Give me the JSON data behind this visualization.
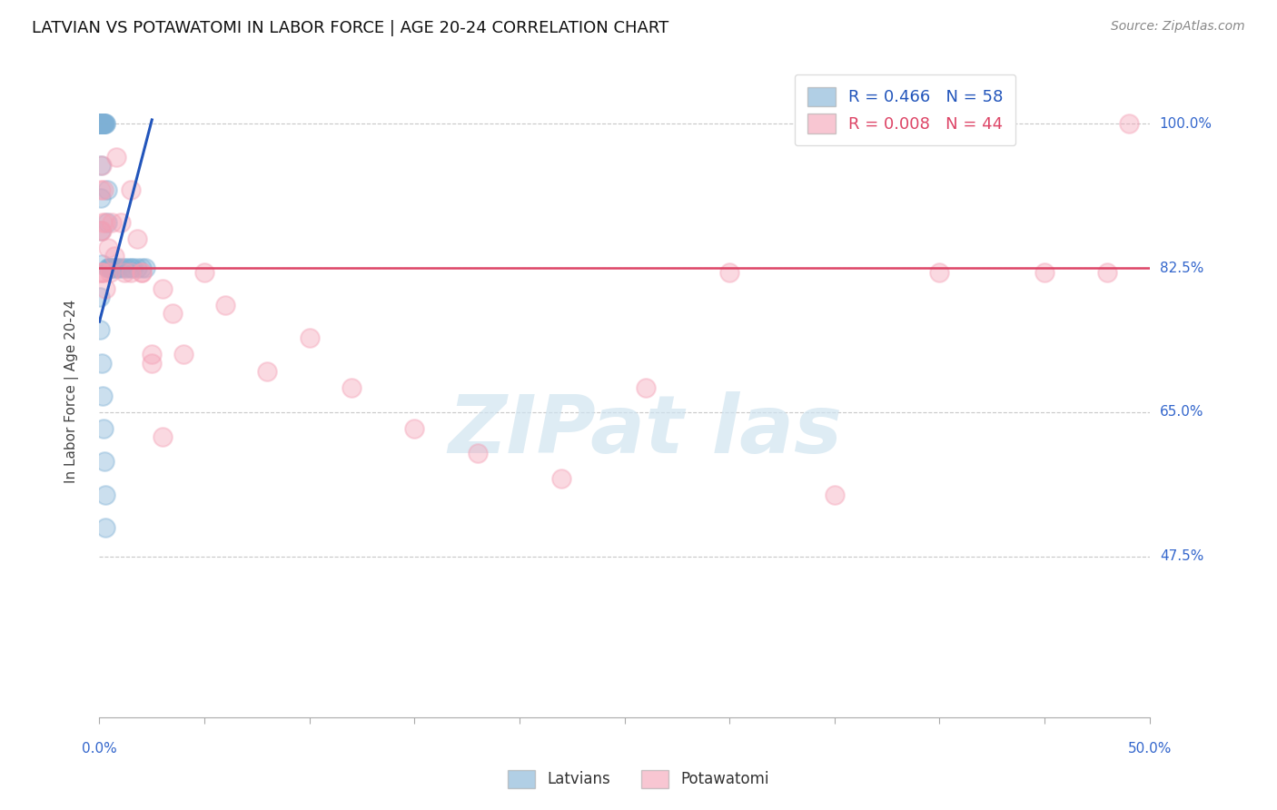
{
  "title": "LATVIAN VS POTAWATOMI IN LABOR FORCE | AGE 20-24 CORRELATION CHART",
  "source": "Source: ZipAtlas.com",
  "ylabel": "In Labor Force | Age 20-24",
  "ytick_labels": [
    "47.5%",
    "65.0%",
    "82.5%",
    "100.0%"
  ],
  "ytick_values": [
    0.475,
    0.65,
    0.825,
    1.0
  ],
  "xlim": [
    0.0,
    0.5
  ],
  "ylim": [
    0.28,
    1.07
  ],
  "legend_latvian": "R = 0.466   N = 58",
  "legend_potawatomi": "R = 0.008   N = 44",
  "legend_label_latvian": "Latvians",
  "legend_label_potawatomi": "Potawatomi",
  "blue_color": "#7EB0D5",
  "pink_color": "#F4A0B5",
  "blue_line_color": "#2255BB",
  "pink_line_color": "#DD4466",
  "latvian_x": [
    0.0005,
    0.0005,
    0.0005,
    0.0005,
    0.0005,
    0.0005,
    0.0005,
    0.0005,
    0.0005,
    0.0005,
    0.001,
    0.001,
    0.001,
    0.001,
    0.001,
    0.001,
    0.001,
    0.001,
    0.001,
    0.0015,
    0.0015,
    0.0015,
    0.002,
    0.002,
    0.002,
    0.0025,
    0.003,
    0.003,
    0.004,
    0.004,
    0.005,
    0.005,
    0.006,
    0.007,
    0.008,
    0.009,
    0.01,
    0.012,
    0.013,
    0.015,
    0.016,
    0.018,
    0.02,
    0.022,
    0.0035,
    0.0035,
    0.0006,
    0.0007,
    0.0008,
    0.0009,
    0.0004,
    0.0003,
    0.0012,
    0.0014,
    0.0018,
    0.0022,
    0.0028,
    0.003
  ],
  "latvian_y": [
    1.0,
    1.0,
    1.0,
    1.0,
    1.0,
    1.0,
    1.0,
    1.0,
    1.0,
    1.0,
    1.0,
    1.0,
    1.0,
    1.0,
    1.0,
    1.0,
    1.0,
    1.0,
    1.0,
    1.0,
    1.0,
    1.0,
    1.0,
    1.0,
    1.0,
    1.0,
    1.0,
    1.0,
    0.825,
    0.825,
    0.825,
    0.825,
    0.825,
    0.825,
    0.825,
    0.825,
    0.825,
    0.825,
    0.825,
    0.825,
    0.825,
    0.825,
    0.825,
    0.825,
    0.92,
    0.88,
    0.95,
    0.91,
    0.87,
    0.83,
    0.79,
    0.75,
    0.71,
    0.67,
    0.63,
    0.59,
    0.55,
    0.51
  ],
  "potawatomi_x": [
    0.0005,
    0.0005,
    0.0005,
    0.001,
    0.001,
    0.001,
    0.0015,
    0.002,
    0.002,
    0.003,
    0.003,
    0.004,
    0.005,
    0.006,
    0.007,
    0.008,
    0.01,
    0.012,
    0.015,
    0.015,
    0.018,
    0.02,
    0.025,
    0.03,
    0.035,
    0.04,
    0.05,
    0.06,
    0.08,
    0.1,
    0.12,
    0.15,
    0.18,
    0.22,
    0.26,
    0.3,
    0.35,
    0.4,
    0.45,
    0.48,
    0.02,
    0.025,
    0.03,
    0.49
  ],
  "potawatomi_y": [
    0.92,
    0.87,
    0.82,
    0.95,
    0.87,
    0.82,
    0.88,
    0.92,
    0.82,
    0.88,
    0.8,
    0.85,
    0.82,
    0.88,
    0.84,
    0.96,
    0.88,
    0.82,
    0.92,
    0.82,
    0.86,
    0.82,
    0.72,
    0.8,
    0.77,
    0.72,
    0.82,
    0.78,
    0.7,
    0.74,
    0.68,
    0.63,
    0.6,
    0.57,
    0.68,
    0.82,
    0.55,
    0.82,
    0.82,
    0.82,
    0.82,
    0.71,
    0.62,
    1.0
  ],
  "blue_trendline_x": [
    0.0,
    0.025
  ],
  "blue_trendline_y": [
    0.76,
    1.005
  ],
  "pink_trendline_y": 0.825,
  "background_color": "#FFFFFF",
  "grid_color": "#C8C8C8",
  "axis_label_color": "#3366CC",
  "watermark_color": "#D0E4F0"
}
